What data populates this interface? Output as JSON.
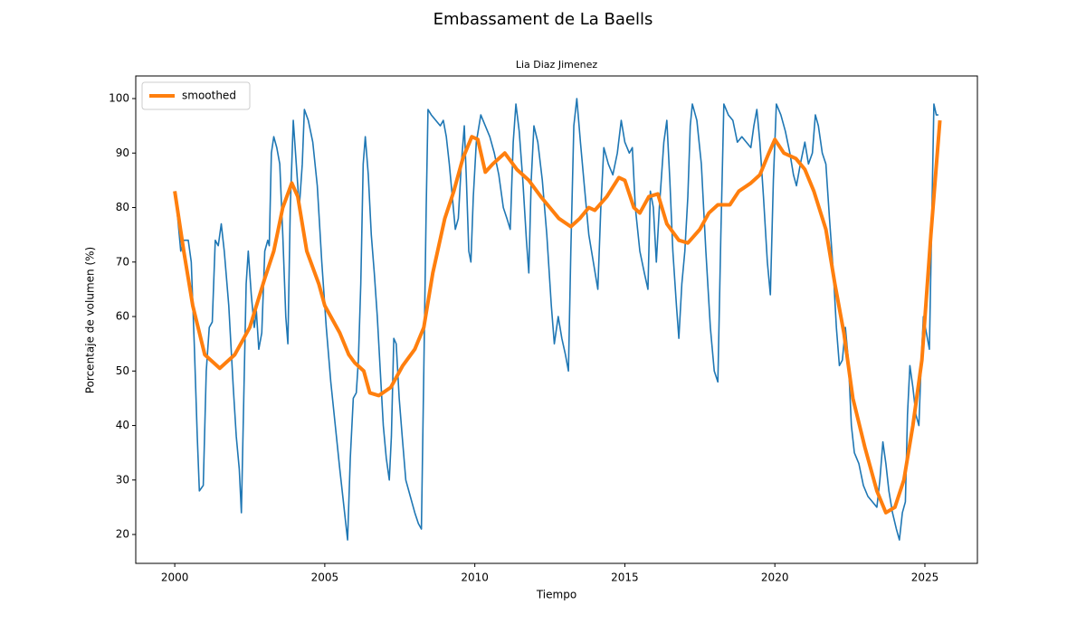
{
  "chart_data": {
    "type": "line",
    "title": "Embassament de La Baells",
    "subtitle": "Lia Diaz Jimenez",
    "x_label": "Tiempo",
    "y_label": "Porcentaje de volumen (%)",
    "xlim": [
      1998.7,
      2026.75
    ],
    "ylim": [
      14.7,
      104.15
    ],
    "xticks": [
      2000,
      2005,
      2010,
      2015,
      2020,
      2025
    ],
    "yticks": [
      20,
      30,
      40,
      50,
      60,
      70,
      80,
      90,
      100
    ],
    "grid": false,
    "legend": "upper left",
    "series": [
      {
        "color": "#1f77b4",
        "x": [
          2000.0,
          2000.1,
          2000.2,
          2000.3,
          2000.45,
          2000.55,
          2000.65,
          2000.75,
          2000.82,
          2000.95,
          2001.05,
          2001.15,
          2001.25,
          2001.35,
          2001.45,
          2001.55,
          2001.65,
          2001.8,
          2001.95,
          2002.05,
          2002.15,
          2002.22,
          2002.3,
          2002.38,
          2002.45,
          2002.55,
          2002.65,
          2002.72,
          2002.8,
          2002.9,
          2003.0,
          2003.1,
          2003.15,
          2003.22,
          2003.3,
          2003.4,
          2003.5,
          2003.6,
          2003.7,
          2003.77,
          2003.85,
          2003.95,
          2004.05,
          2004.15,
          2004.25,
          2004.32,
          2004.45,
          2004.6,
          2004.75,
          2004.9,
          2005.05,
          2005.2,
          2005.35,
          2005.5,
          2005.6,
          2005.7,
          2005.76,
          2005.85,
          2005.95,
          2006.05,
          2006.12,
          2006.2,
          2006.28,
          2006.35,
          2006.45,
          2006.55,
          2006.65,
          2006.75,
          2006.85,
          2006.95,
          2007.05,
          2007.15,
          2007.22,
          2007.3,
          2007.38,
          2007.48,
          2007.58,
          2007.7,
          2007.85,
          2008.0,
          2008.12,
          2008.22,
          2008.3,
          2008.38,
          2008.44,
          2008.55,
          2008.7,
          2008.85,
          2008.95,
          2009.05,
          2009.15,
          2009.25,
          2009.35,
          2009.45,
          2009.55,
          2009.65,
          2009.72,
          2009.8,
          2009.87,
          2009.95,
          2010.05,
          2010.2,
          2010.35,
          2010.5,
          2010.65,
          2010.8,
          2010.95,
          2011.07,
          2011.18,
          2011.28,
          2011.37,
          2011.48,
          2011.6,
          2011.72,
          2011.8,
          2011.88,
          2011.97,
          2012.1,
          2012.25,
          2012.4,
          2012.55,
          2012.65,
          2012.78,
          2012.9,
          2013.02,
          2013.12,
          2013.2,
          2013.3,
          2013.4,
          2013.52,
          2013.65,
          2013.8,
          2013.95,
          2014.1,
          2014.2,
          2014.3,
          2014.45,
          2014.6,
          2014.75,
          2014.88,
          2015.0,
          2015.15,
          2015.25,
          2015.35,
          2015.5,
          2015.65,
          2015.77,
          2015.85,
          2015.95,
          2016.05,
          2016.15,
          2016.3,
          2016.4,
          2016.5,
          2016.6,
          2016.72,
          2016.8,
          2016.9,
          2017.0,
          2017.1,
          2017.18,
          2017.25,
          2017.4,
          2017.55,
          2017.7,
          2017.85,
          2017.98,
          2018.1,
          2018.2,
          2018.3,
          2018.45,
          2018.6,
          2018.75,
          2018.9,
          2019.05,
          2019.2,
          2019.3,
          2019.4,
          2019.5,
          2019.62,
          2019.75,
          2019.85,
          2019.95,
          2020.05,
          2020.2,
          2020.35,
          2020.5,
          2020.62,
          2020.72,
          2020.85,
          2021.0,
          2021.12,
          2021.25,
          2021.35,
          2021.45,
          2021.58,
          2021.7,
          2021.82,
          2021.95,
          2022.05,
          2022.15,
          2022.25,
          2022.35,
          2022.45,
          2022.55,
          2022.65,
          2022.8,
          2022.95,
          2023.1,
          2023.25,
          2023.4,
          2023.5,
          2023.6,
          2023.7,
          2023.8,
          2023.92,
          2024.05,
          2024.15,
          2024.25,
          2024.35,
          2024.42,
          2024.5,
          2024.6,
          2024.7,
          2024.8,
          2024.88,
          2024.95,
          2025.05,
          2025.15,
          2025.22,
          2025.3,
          2025.38,
          2025.45
        ],
        "values": [
          83,
          78,
          72,
          74,
          74,
          70,
          55,
          38,
          28,
          29,
          50,
          58,
          59,
          74,
          73,
          77,
          72,
          62,
          47,
          38,
          32,
          24,
          45,
          66,
          72,
          64,
          58,
          61,
          54,
          57,
          72,
          74,
          73,
          90,
          93,
          91,
          88,
          75,
          60,
          55,
          80,
          96,
          88,
          80,
          88,
          98,
          96,
          92,
          84,
          70,
          58,
          48,
          40,
          32,
          27,
          22,
          19,
          34,
          45,
          46,
          52,
          66,
          88,
          93,
          86,
          75,
          68,
          60,
          50,
          40,
          34,
          30,
          38,
          56,
          55,
          45,
          38,
          30,
          27,
          24,
          22,
          21,
          50,
          80,
          98,
          97,
          96,
          95,
          96,
          93,
          88,
          82,
          76,
          78,
          88,
          95,
          85,
          72,
          70,
          82,
          92,
          97,
          95,
          93,
          90,
          86,
          80,
          78,
          76,
          92,
          99,
          94,
          85,
          74,
          68,
          85,
          95,
          92,
          85,
          75,
          62,
          55,
          60,
          56,
          53,
          50,
          72,
          95,
          100,
          92,
          84,
          75,
          70,
          65,
          80,
          91,
          88,
          86,
          90,
          96,
          92,
          90,
          91,
          80,
          72,
          68,
          65,
          83,
          80,
          70,
          80,
          92,
          96,
          85,
          72,
          62,
          56,
          66,
          72,
          82,
          95,
          99,
          96,
          88,
          72,
          58,
          50,
          48,
          75,
          99,
          97,
          96,
          92,
          93,
          92,
          91,
          95,
          98,
          92,
          82,
          70,
          64,
          85,
          99,
          97,
          94,
          90,
          86,
          84,
          88,
          92,
          88,
          90,
          97,
          95,
          90,
          88,
          78,
          68,
          58,
          51,
          52,
          58,
          52,
          40,
          35,
          33,
          29,
          27,
          26,
          25,
          30,
          37,
          33,
          28,
          24,
          21,
          19,
          24,
          26,
          42,
          51,
          47,
          42,
          40,
          52,
          60,
          57,
          54,
          75,
          99,
          97,
          97
        ]
      },
      {
        "name": "smoothed",
        "color": "#ff7f0e",
        "x": [
          2000.0,
          2000.3,
          2000.6,
          2001.0,
          2001.5,
          2002.0,
          2002.5,
          2003.0,
          2003.3,
          2003.6,
          2003.9,
          2004.1,
          2004.4,
          2004.8,
          2005.0,
          2005.5,
          2005.8,
          2006.0,
          2006.3,
          2006.5,
          2006.8,
          2007.2,
          2007.6,
          2008.0,
          2008.3,
          2008.6,
          2009.0,
          2009.3,
          2009.6,
          2009.9,
          2010.1,
          2010.35,
          2010.6,
          2011.0,
          2011.4,
          2011.8,
          2012.2,
          2012.5,
          2012.8,
          2013.2,
          2013.5,
          2013.8,
          2014.0,
          2014.4,
          2014.8,
          2015.0,
          2015.3,
          2015.5,
          2015.8,
          2016.1,
          2016.4,
          2016.8,
          2017.1,
          2017.5,
          2017.8,
          2018.1,
          2018.5,
          2018.8,
          2019.2,
          2019.5,
          2019.8,
          2020.0,
          2020.3,
          2020.7,
          2021.0,
          2021.3,
          2021.7,
          2022.0,
          2022.3,
          2022.6,
          2023.0,
          2023.4,
          2023.7,
          2024.0,
          2024.3,
          2024.6,
          2024.9,
          2025.2,
          2025.5
        ],
        "values": [
          83,
          72,
          62,
          53,
          50.5,
          53,
          58,
          67,
          72,
          80,
          84.5,
          82,
          72,
          66,
          62,
          57,
          53,
          51.5,
          50,
          46,
          45.5,
          47,
          51,
          54,
          58,
          68,
          78,
          83,
          89,
          93,
          92.5,
          86.5,
          88,
          90,
          87,
          85,
          82,
          80,
          78,
          76.5,
          78,
          80,
          79.5,
          82,
          85.5,
          85,
          80,
          79,
          82,
          82.5,
          77,
          74,
          73.5,
          76,
          79,
          80.5,
          80.5,
          83,
          84.5,
          86,
          90,
          92.5,
          90,
          89,
          87,
          83,
          76,
          66,
          57,
          45,
          36,
          28,
          24,
          25,
          30,
          40,
          52,
          75,
          96
        ]
      }
    ]
  }
}
